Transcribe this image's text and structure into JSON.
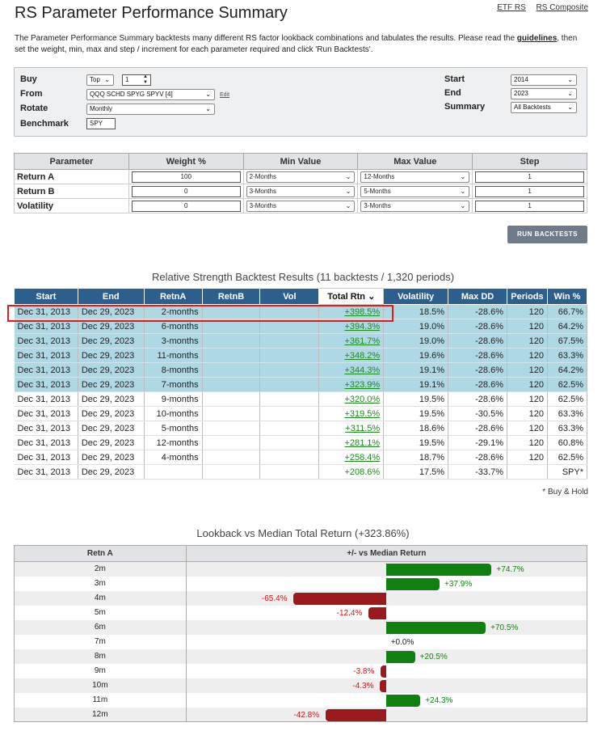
{
  "page": {
    "title": "RS Parameter Performance Summary",
    "links": [
      "ETF RS",
      "RS Composite"
    ],
    "intro_part1": "The Parameter Performance Summary backtests many different RS factor lookback combinations and tabulates the results.  Please read the ",
    "intro_link": "guidelines",
    "intro_part2": ", then set the weight, min, max and step / increment for each parameter required and click 'Run Backtests'."
  },
  "settings": {
    "buy_label": "Buy",
    "buy_mode": "Top",
    "buy_count": "1",
    "from_label": "From",
    "from_value": "QQQ SCHD SPYG SPYV [4]",
    "edit_label": "Edit",
    "rotate_label": "Rotate",
    "rotate_value": "Monthly",
    "benchmark_label": "Benchmark",
    "benchmark_value": "SPY",
    "start_label": "Start",
    "start_value": "2014",
    "end_label": "End",
    "end_value": "2023",
    "summary_label": "Summary",
    "summary_value": "All Backtests"
  },
  "parameters": {
    "headers": [
      "Parameter",
      "Weight %",
      "Min Value",
      "Max Value",
      "Step"
    ],
    "rows": [
      {
        "name": "Return A",
        "weight": "100",
        "min": "2-Months",
        "max": "12-Months",
        "step": "1"
      },
      {
        "name": "Return B",
        "weight": "0",
        "min": "3-Months",
        "max": "5-Months",
        "step": "1"
      },
      {
        "name": "Volatility",
        "weight": "0",
        "min": "3-Months",
        "max": "3-Months",
        "step": "1"
      }
    ]
  },
  "run_button": "RUN BACKTESTS",
  "results": {
    "title": "Relative Strength Backtest Results (11 backtests / 1,320 periods)",
    "headers": [
      "Start",
      "End",
      "RetnA",
      "RetnB",
      "Vol",
      "Total Rtn",
      "Volatility",
      "Max DD",
      "Periods",
      "Win %"
    ],
    "sort_indicator": "⌄",
    "rows": [
      {
        "start": "Dec 31, 2013",
        "end": "Dec 29, 2023",
        "retna": "2-months",
        "retnb": "",
        "vol": "",
        "total": "+398.5%",
        "volatility": "18.5%",
        "maxdd": "-28.6%",
        "periods": "120",
        "win": "66.7%",
        "hl": true
      },
      {
        "start": "Dec 31, 2013",
        "end": "Dec 29, 2023",
        "retna": "6-months",
        "retnb": "",
        "vol": "",
        "total": "+394.3%",
        "volatility": "19.0%",
        "maxdd": "-28.6%",
        "periods": "120",
        "win": "64.2%",
        "hl": true
      },
      {
        "start": "Dec 31, 2013",
        "end": "Dec 29, 2023",
        "retna": "3-months",
        "retnb": "",
        "vol": "",
        "total": "+361.7%",
        "volatility": "19.0%",
        "maxdd": "-28.6%",
        "periods": "120",
        "win": "67.5%",
        "hl": true
      },
      {
        "start": "Dec 31, 2013",
        "end": "Dec 29, 2023",
        "retna": "11-months",
        "retnb": "",
        "vol": "",
        "total": "+348.2%",
        "volatility": "19.6%",
        "maxdd": "-28.6%",
        "periods": "120",
        "win": "63.3%",
        "hl": true
      },
      {
        "start": "Dec 31, 2013",
        "end": "Dec 29, 2023",
        "retna": "8-months",
        "retnb": "",
        "vol": "",
        "total": "+344.3%",
        "volatility": "19.1%",
        "maxdd": "-28.6%",
        "periods": "120",
        "win": "64.2%",
        "hl": true
      },
      {
        "start": "Dec 31, 2013",
        "end": "Dec 29, 2023",
        "retna": "7-months",
        "retnb": "",
        "vol": "",
        "total": "+323.9%",
        "volatility": "19.1%",
        "maxdd": "-28.6%",
        "periods": "120",
        "win": "62.5%",
        "hl": true
      },
      {
        "start": "Dec 31, 2013",
        "end": "Dec 29, 2023",
        "retna": "9-months",
        "retnb": "",
        "vol": "",
        "total": "+320.0%",
        "volatility": "19.5%",
        "maxdd": "-28.6%",
        "periods": "120",
        "win": "62.5%",
        "hl": false
      },
      {
        "start": "Dec 31, 2013",
        "end": "Dec 29, 2023",
        "retna": "10-months",
        "retnb": "",
        "vol": "",
        "total": "+319.5%",
        "volatility": "19.5%",
        "maxdd": "-30.5%",
        "periods": "120",
        "win": "63.3%",
        "hl": false
      },
      {
        "start": "Dec 31, 2013",
        "end": "Dec 29, 2023",
        "retna": "5-months",
        "retnb": "",
        "vol": "",
        "total": "+311.5%",
        "volatility": "18.6%",
        "maxdd": "-28.6%",
        "periods": "120",
        "win": "63.3%",
        "hl": false
      },
      {
        "start": "Dec 31, 2013",
        "end": "Dec 29, 2023",
        "retna": "12-months",
        "retnb": "",
        "vol": "",
        "total": "+281.1%",
        "volatility": "19.5%",
        "maxdd": "-29.1%",
        "periods": "120",
        "win": "60.8%",
        "hl": false
      },
      {
        "start": "Dec 31, 2013",
        "end": "Dec 29, 2023",
        "retna": "4-months",
        "retnb": "",
        "vol": "",
        "total": "+258.4%",
        "volatility": "18.7%",
        "maxdd": "-28.6%",
        "periods": "120",
        "win": "62.5%",
        "hl": false
      },
      {
        "start": "Dec 31, 2013",
        "end": "Dec 29, 2023",
        "retna": "",
        "retnb": "",
        "vol": "",
        "total": "+208.6%",
        "volatility": "17.5%",
        "maxdd": "-33.7%",
        "periods": "",
        "win": "SPY*",
        "hl": false,
        "benchmark": true
      }
    ],
    "footnote": "* Buy & Hold"
  },
  "chart_data": {
    "type": "bar",
    "title": "Lookback vs Median Total Return (+323.86%)",
    "xlabel": "Retn A",
    "ylabel": "+/- vs Median Return",
    "categories": [
      "2m",
      "3m",
      "4m",
      "5m",
      "6m",
      "7m",
      "8m",
      "9m",
      "10m",
      "11m",
      "12m"
    ],
    "values": [
      74.7,
      37.9,
      -65.4,
      -12.4,
      70.5,
      0.0,
      20.5,
      -3.8,
      -4.3,
      24.3,
      -42.8
    ],
    "labels": [
      "+74.7%",
      "+37.9%",
      "-65.4%",
      "-12.4%",
      "+70.5%",
      "+0.0%",
      "+20.5%",
      "-3.8%",
      "-4.3%",
      "+24.3%",
      "-42.8%"
    ],
    "colors": {
      "positive": "#108010",
      "negative": "#9b1a1d"
    }
  }
}
